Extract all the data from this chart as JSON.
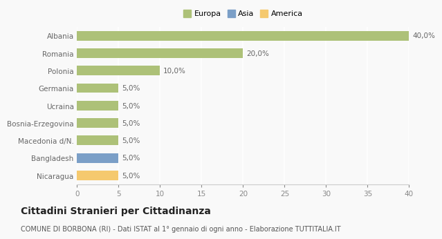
{
  "categories": [
    "Albania",
    "Romania",
    "Polonia",
    "Germania",
    "Ucraina",
    "Bosnia-Erzegovina",
    "Macedonia d/N.",
    "Bangladesh",
    "Nicaragua"
  ],
  "values": [
    40.0,
    20.0,
    10.0,
    5.0,
    5.0,
    5.0,
    5.0,
    5.0,
    5.0
  ],
  "colors": [
    "#adc178",
    "#adc178",
    "#adc178",
    "#adc178",
    "#adc178",
    "#adc178",
    "#adc178",
    "#7b9fc7",
    "#f5c96e"
  ],
  "labels": [
    "40,0%",
    "20,0%",
    "10,0%",
    "5,0%",
    "5,0%",
    "5,0%",
    "5,0%",
    "5,0%",
    "5,0%"
  ],
  "xlim": [
    0,
    40
  ],
  "xticks": [
    0,
    5,
    10,
    15,
    20,
    25,
    30,
    35,
    40
  ],
  "legend_items": [
    {
      "label": "Europa",
      "color": "#adc178"
    },
    {
      "label": "Asia",
      "color": "#7b9fc7"
    },
    {
      "label": "America",
      "color": "#f5c96e"
    }
  ],
  "title": "Cittadini Stranieri per Cittadinanza",
  "subtitle": "COMUNE DI BORBONA (RI) - Dati ISTAT al 1° gennaio di ogni anno - Elaborazione TUTTITALIA.IT",
  "background_color": "#f9f9f9",
  "grid_color": "#ffffff",
  "bar_height": 0.55,
  "label_fontsize": 7.5,
  "ytick_fontsize": 7.5,
  "xtick_fontsize": 7.5,
  "title_fontsize": 10,
  "subtitle_fontsize": 7,
  "legend_fontsize": 8
}
